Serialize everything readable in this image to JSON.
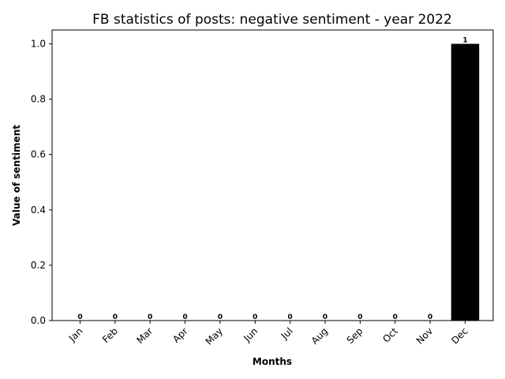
{
  "chart_data": {
    "type": "bar",
    "title": "FB statistics of posts: negative sentiment - year 2022",
    "xlabel": "Months",
    "ylabel": "Value of sentiment",
    "categories": [
      "Jan",
      "Feb",
      "Mar",
      "Apr",
      "May",
      "Jun",
      "Jul",
      "Aug",
      "Sep",
      "Oct",
      "Nov",
      "Dec"
    ],
    "values": [
      0,
      0,
      0,
      0,
      0,
      0,
      0,
      0,
      0,
      0,
      0,
      1
    ],
    "data_labels": [
      "0",
      "0",
      "0",
      "0",
      "0",
      "0",
      "0",
      "0",
      "0",
      "0",
      "0",
      "1"
    ],
    "yticks": [
      "0.0",
      "0.2",
      "0.4",
      "0.6",
      "0.8",
      "1.0"
    ],
    "ylim": [
      0,
      1.05
    ],
    "grid": false,
    "bar_color": "#000000",
    "xtick_rotation_deg": 45
  }
}
